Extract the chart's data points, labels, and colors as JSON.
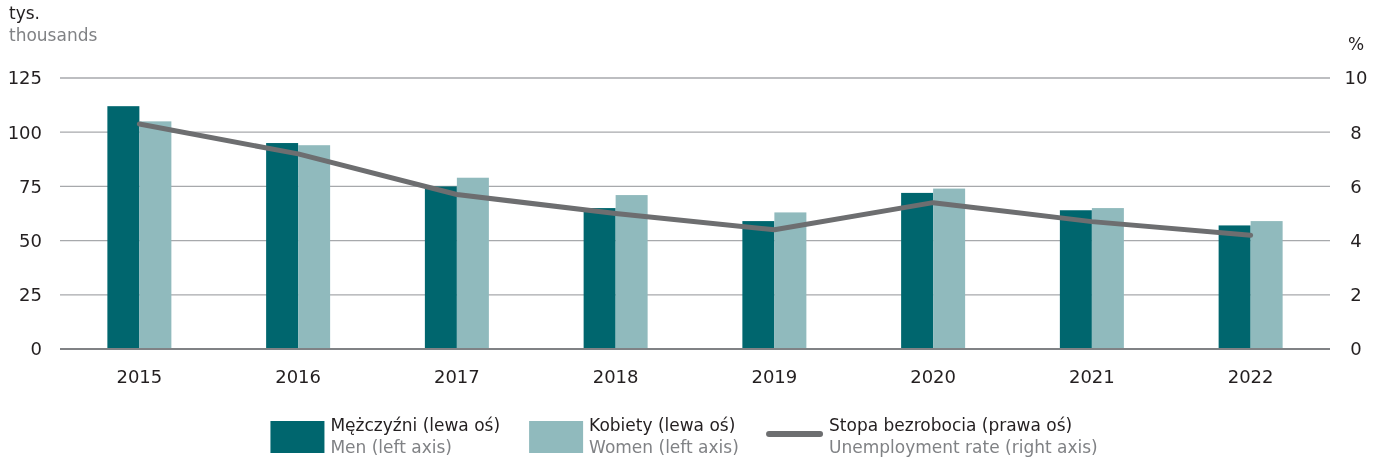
{
  "chart_data": {
    "type": "bar",
    "ylabel": "tys.\nthousands",
    "y2label": "%",
    "categories": [
      "2015",
      "2016",
      "2017",
      "2018",
      "2019",
      "2020",
      "2021",
      "2022"
    ],
    "series": [
      {
        "name": "Mężczyźni (lewa oś)\nMen (left axis)",
        "color": "#00666e",
        "values": [
          112,
          95,
          75,
          65,
          59,
          72,
          64,
          57
        ]
      },
      {
        "name": "Kobiety (lewa oś)\nWomen (left axis)",
        "color": "#90babd",
        "values": [
          105,
          94,
          79,
          71,
          63,
          74,
          65,
          59
        ]
      },
      {
        "name": "Stopa bezrobocia (prawa oś)\nUnemployment rate (right axis)",
        "type": "line",
        "axis": "y2",
        "color": "#6d6e70",
        "values": [
          8.3,
          7.2,
          5.7,
          5.0,
          4.4,
          5.4,
          4.7,
          4.2
        ]
      }
    ],
    "ylim": [
      0,
      125
    ],
    "yticks": [
      0,
      25,
      50,
      75,
      100,
      125
    ],
    "y2lim": [
      0,
      10
    ],
    "y2ticks": [
      0,
      2,
      4,
      6,
      8,
      10
    ],
    "grid": "y",
    "legend": "bottom"
  }
}
